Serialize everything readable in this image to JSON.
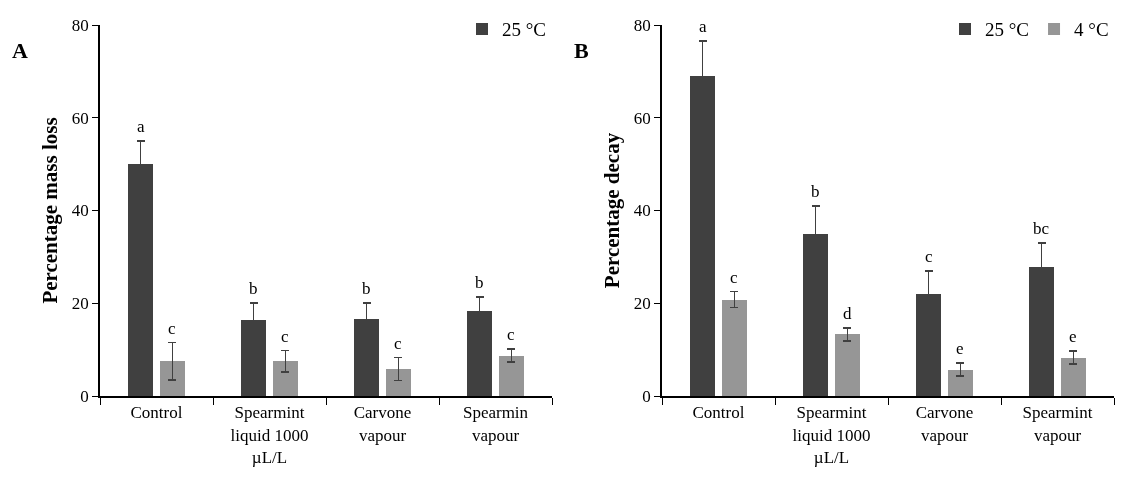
{
  "chart_data": [
    {
      "type": "bar",
      "ylabel": "Percentage mass loss",
      "annotations": [
        "A"
      ],
      "categories": [
        "Control",
        "Spearmint liquid 1000 µL/L",
        "Carvone vapour",
        "Spearmin vapour"
      ],
      "series": [
        {
          "name": "25 °C",
          "color": "#404040",
          "values": [
            50,
            16.4,
            16.7,
            18.4
          ],
          "errors": [
            5,
            3.7,
            3.4,
            3
          ],
          "value_labels": [
            "a",
            "b",
            "b",
            "b"
          ]
        },
        {
          "color": "#969696",
          "values": [
            7.5,
            7.5,
            5.8,
            8.7
          ],
          "errors": [
            4,
            2.3,
            2.5,
            1.4
          ],
          "value_labels": [
            "c",
            "c",
            "c",
            "c"
          ]
        }
      ],
      "ylim": [
        0,
        80
      ],
      "yticks": [
        0,
        20,
        40,
        60,
        80
      ],
      "legend": "top right"
    },
    {
      "type": "bar",
      "ylabel": "Percentage decay",
      "annotations": [
        "B"
      ],
      "categories": [
        "Control",
        "Spearmint liquid 1000 µL/L",
        "Carvone vapour",
        "Spearmint vapour"
      ],
      "series": [
        {
          "name": "25 °C",
          "color": "#404040",
          "values": [
            69,
            34.9,
            21.9,
            27.9
          ],
          "errors": [
            7.6,
            6.1,
            5.1,
            5.1
          ],
          "value_labels": [
            "a",
            "b",
            "c",
            "bc"
          ]
        },
        {
          "name": "4 °C",
          "color": "#969696",
          "values": [
            20.8,
            13.3,
            5.7,
            8.3
          ],
          "errors": [
            1.7,
            1.4,
            1.4,
            1.4
          ],
          "value_labels": [
            "c",
            "d",
            "e",
            "e"
          ]
        }
      ],
      "ylim": [
        0,
        80
      ],
      "yticks": [
        0,
        20,
        40,
        60,
        80
      ],
      "legend": "top right"
    }
  ]
}
